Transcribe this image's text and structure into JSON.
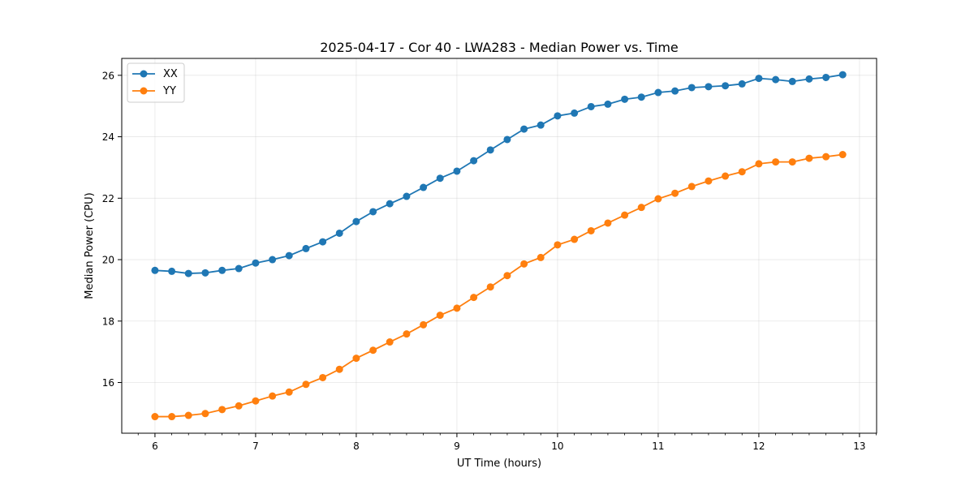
{
  "chart_data": {
    "type": "line",
    "title": "2025-04-17 - Cor 40 - LWA283 - Median Power vs. Time",
    "xlabel": "UT Time (hours)",
    "ylabel": "Median Power (CPU)",
    "xlim": [
      5.67,
      13.17
    ],
    "ylim": [
      14.35,
      26.55
    ],
    "x_ticks": [
      6,
      7,
      8,
      9,
      10,
      11,
      12,
      13
    ],
    "x_tick_labels": [
      "6",
      "7",
      "8",
      "9",
      "10",
      "11",
      "12",
      "13"
    ],
    "y_ticks": [
      16,
      18,
      20,
      22,
      24,
      26
    ],
    "y_tick_labels": [
      "16",
      "18",
      "20",
      "22",
      "24",
      "26"
    ],
    "grid": true,
    "legend_position": "top-left",
    "x": [
      6.0,
      6.167,
      6.333,
      6.5,
      6.667,
      6.833,
      7.0,
      7.167,
      7.333,
      7.5,
      7.667,
      7.833,
      8.0,
      8.167,
      8.333,
      8.5,
      8.667,
      8.833,
      9.0,
      9.167,
      9.333,
      9.5,
      9.667,
      9.833,
      10.0,
      10.167,
      10.333,
      10.5,
      10.667,
      10.833,
      11.0,
      11.167,
      11.333,
      11.5,
      11.667,
      11.833,
      12.0,
      12.167,
      12.333,
      12.5,
      12.667,
      12.833
    ],
    "series": [
      {
        "name": "XX",
        "color": "#1f77b4",
        "values": [
          19.65,
          19.62,
          19.55,
          19.57,
          19.65,
          19.71,
          19.89,
          20.0,
          20.13,
          20.36,
          20.58,
          20.86,
          21.24,
          21.56,
          21.82,
          22.06,
          22.35,
          22.65,
          22.88,
          23.22,
          23.57,
          23.91,
          24.25,
          24.38,
          24.68,
          24.77,
          24.98,
          25.06,
          25.22,
          25.29,
          25.44,
          25.49,
          25.6,
          25.63,
          25.66,
          25.72,
          25.9,
          25.86,
          25.8,
          25.88,
          25.93,
          26.02
        ]
      },
      {
        "name": "YY",
        "color": "#ff7f0e",
        "values": [
          14.89,
          14.89,
          14.93,
          14.99,
          15.12,
          15.24,
          15.4,
          15.56,
          15.69,
          15.94,
          16.16,
          16.43,
          16.79,
          17.05,
          17.32,
          17.58,
          17.88,
          18.19,
          18.42,
          18.77,
          19.11,
          19.48,
          19.86,
          20.07,
          20.48,
          20.66,
          20.94,
          21.19,
          21.45,
          21.7,
          21.98,
          22.16,
          22.38,
          22.56,
          22.72,
          22.86,
          23.12,
          23.18,
          23.18,
          23.3,
          23.35,
          23.42
        ]
      }
    ]
  }
}
